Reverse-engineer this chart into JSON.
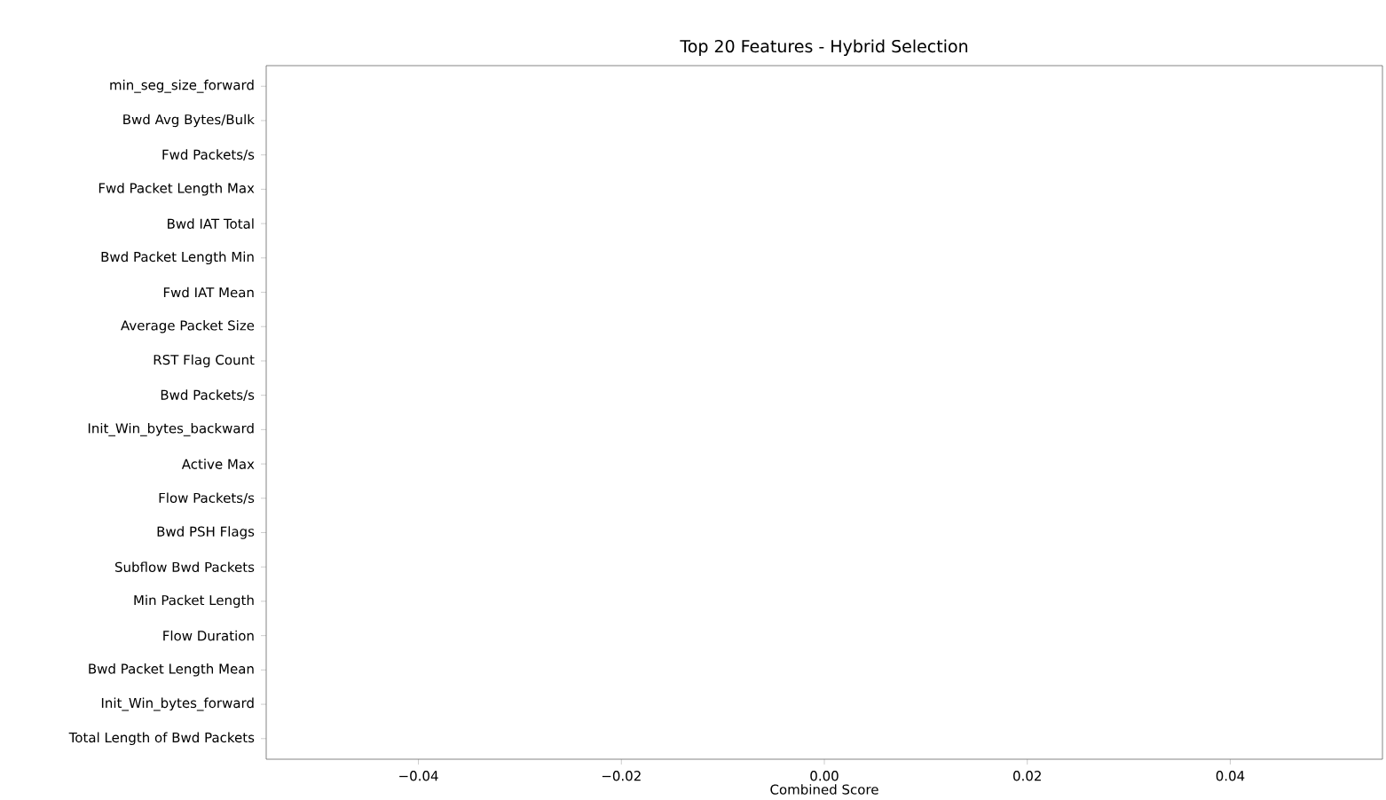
{
  "chart_data": {
    "type": "bar",
    "orientation": "horizontal",
    "title": "Top 20 Features - Hybrid Selection",
    "xlabel": "Combined Score",
    "categories": [
      "min_seg_size_forward",
      "Bwd Avg Bytes/Bulk",
      "Fwd Packets/s",
      "Fwd Packet Length Max",
      "Bwd IAT Total",
      "Bwd Packet Length Min",
      "Fwd IAT Mean",
      "Average Packet Size",
      "RST Flag Count",
      "Bwd Packets/s",
      "Init_Win_bytes_backward",
      "Active Max",
      "Flow Packets/s",
      "Bwd PSH Flags",
      "Subflow Bwd Packets",
      "Min Packet Length",
      "Flow Duration",
      "Bwd Packet Length Mean",
      "Init_Win_bytes_forward",
      "Total Length of Bwd Packets"
    ],
    "values": [
      0,
      0,
      0,
      0,
      0,
      0,
      0,
      0,
      0,
      0,
      0,
      0,
      0,
      0,
      0,
      0,
      0,
      0,
      0,
      0
    ],
    "xlim": [
      -0.055,
      0.055
    ],
    "xticks": [
      {
        "value": -0.04,
        "label": "−0.04"
      },
      {
        "value": -0.02,
        "label": "−0.02"
      },
      {
        "value": 0,
        "label": "0.00"
      },
      {
        "value": 0.02,
        "label": "0.02"
      },
      {
        "value": 0.04,
        "label": "0.04"
      }
    ]
  }
}
